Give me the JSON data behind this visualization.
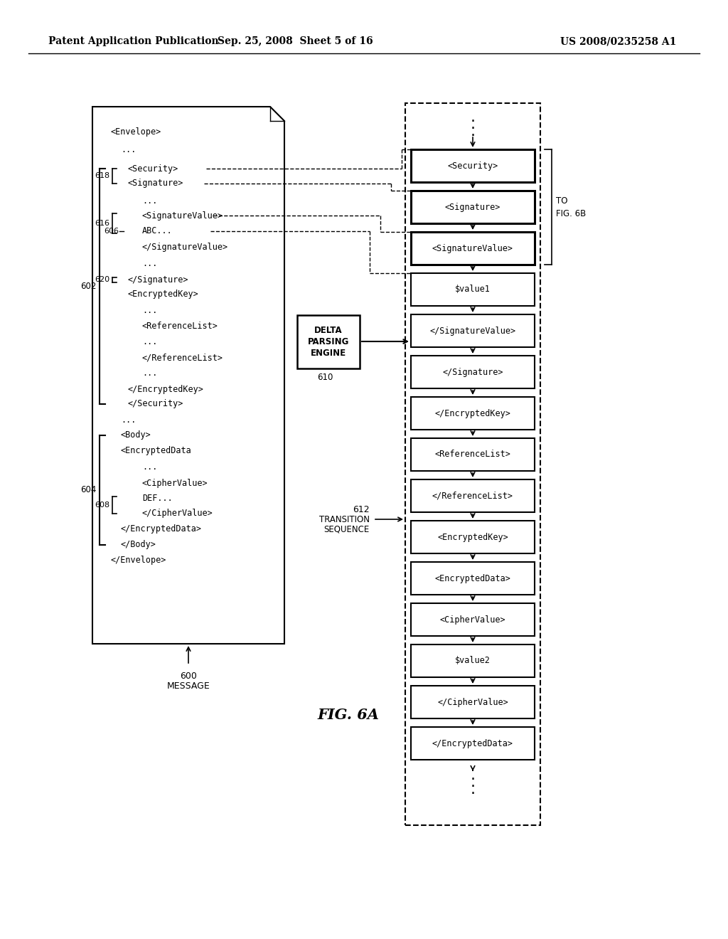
{
  "header_left": "Patent Application Publication",
  "header_center": "Sep. 25, 2008  Sheet 5 of 16",
  "header_right": "US 2008/0235258 A1",
  "fig_label": "FIG. 6A",
  "bg_color": "#ffffff",
  "seq_boxes": [
    "<Security>",
    "<Signature>",
    "<SignatureValue>",
    "$value1",
    "</SignatureValue>",
    "</Signature>",
    "</EncryptedKey>",
    "<ReferenceList>",
    "</ReferenceList>",
    "<EncryptedKey>",
    "<EncryptedData>",
    "<CipherValue>",
    "$value2",
    "</CipherValue>",
    "</EncryptedData>"
  ]
}
